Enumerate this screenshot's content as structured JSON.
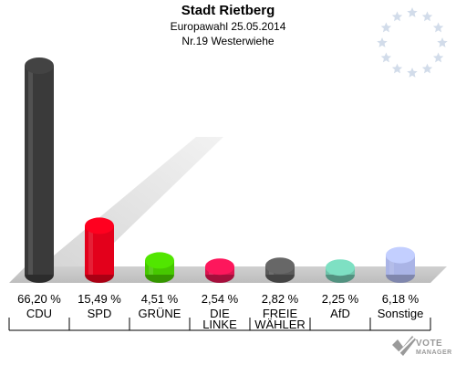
{
  "header": {
    "title": "Stadt Rietberg",
    "subtitle": "Europawahl 25.05.2014",
    "district": "Nr.19 Westerwiehe"
  },
  "chart_data": {
    "type": "bar",
    "title": "Stadt Rietberg",
    "categories": [
      "CDU",
      "SPD",
      "GRÜNE",
      "DIE LINKE",
      "FREIE WÄHLER",
      "AfD",
      "Sonstige"
    ],
    "category_lines": [
      [
        "CDU"
      ],
      [
        "SPD"
      ],
      [
        "GRÜNE"
      ],
      [
        "DIE",
        "LINKE"
      ],
      [
        "FREIE",
        "WÄHLER"
      ],
      [
        "AfD"
      ],
      [
        "Sonstige"
      ]
    ],
    "values": [
      66.2,
      15.49,
      4.51,
      2.54,
      2.82,
      2.25,
      6.18
    ],
    "value_labels": [
      "66,20 %",
      "15,49 %",
      "4,51 %",
      "2,54 %",
      "2,82 %",
      "2,25 %",
      "6,18 %"
    ],
    "colors": [
      "#3a3a3a",
      "#e3001b",
      "#46c800",
      "#dc1450",
      "#5a5a5a",
      "#6ec3aa",
      "#aab4e6"
    ],
    "ylim": [
      0,
      66.2
    ],
    "grid": false,
    "legend": "none"
  },
  "brand": {
    "line1": "VOTE",
    "line2": "MANAGER",
    "colors": {
      "text": "#999999"
    }
  }
}
